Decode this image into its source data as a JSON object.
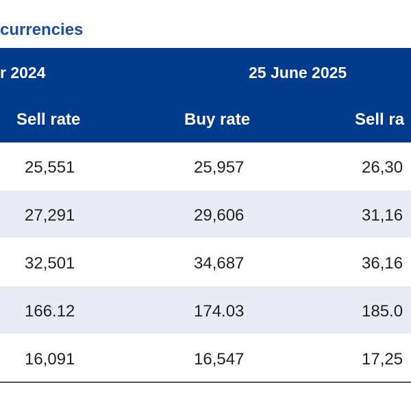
{
  "title": "currencies",
  "header": {
    "date_left": "r 2024",
    "date_right": "25 June 2025",
    "col_sell1": "Sell rate",
    "col_buy2": "Buy rate",
    "col_sell2": "Sell ra"
  },
  "rows": [
    {
      "sell1": "25,551",
      "buy2": "25,957",
      "sell2": "26,30"
    },
    {
      "sell1": "27,291",
      "buy2": "29,606",
      "sell2": "31,16"
    },
    {
      "sell1": "32,501",
      "buy2": "34,687",
      "sell2": "36,16"
    },
    {
      "sell1": "166.12",
      "buy2": "174.03",
      "sell2": "185.0"
    },
    {
      "sell1": "16,091",
      "buy2": "16,547",
      "sell2": "17,25"
    }
  ],
  "colors": {
    "header_bg": "#003a8c",
    "title": "#1d4fa3",
    "alt_row_bg": "#e9ecf4"
  }
}
